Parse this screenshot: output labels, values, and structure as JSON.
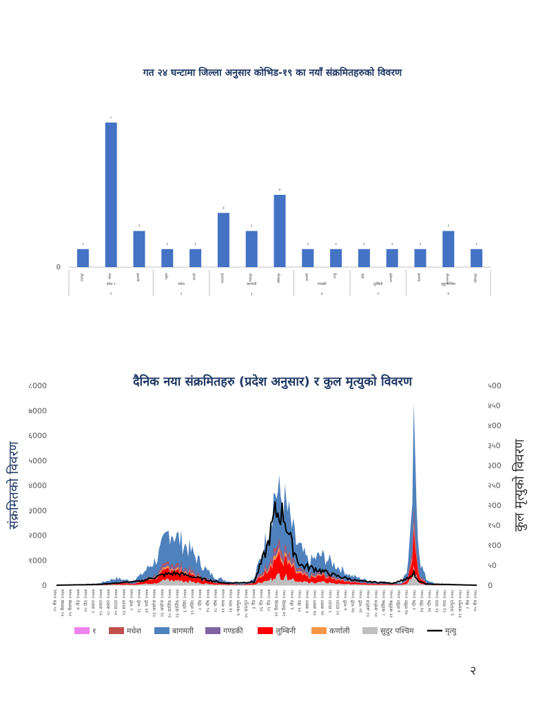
{
  "page": {
    "number": "२"
  },
  "chart_data": [
    {
      "type": "bar",
      "title": "गत २४ घन्टामा जिल्ला अनुसार कोभिड-१९ का नयाँ संक्रमितहरुको विवरण",
      "xlabel": "",
      "ylabel": "",
      "y_tick_labels": [
        "0"
      ],
      "categories": [
        "उदयपुर",
        "मोरङ",
        "सुनसरी",
        "धनुषा",
        "सप्तरी",
        "काठमाडौं",
        "भक्तपुर",
        "ललितपुर",
        "कास्की",
        "तनहुँ",
        "बाँके",
        "रुपन्देही",
        "कैलाली",
        "कञ्चनपुर",
        "डडेलधुरा"
      ],
      "values": [
        1,
        8,
        2,
        1,
        1,
        3,
        2,
        4,
        1,
        1,
        1,
        1,
        1,
        2,
        1
      ],
      "data_labels": [
        "१",
        "८",
        "२",
        "१",
        "१",
        "३",
        "२",
        "४",
        "१",
        "१",
        "१",
        "१",
        "१",
        "२",
        "१"
      ],
      "groups": [
        {
          "name": "प्रदेश १",
          "code": "१",
          "start": 0,
          "end": 2
        },
        {
          "name": "मधेश",
          "code": "२",
          "start": 3,
          "end": 4
        },
        {
          "name": "बागमती",
          "code": "३",
          "start": 5,
          "end": 7
        },
        {
          "name": "गण्डकी",
          "code": "४",
          "start": 8,
          "end": 9
        },
        {
          "name": "लुम्बिनी",
          "code": "५",
          "start": 10,
          "end": 11
        },
        {
          "name": "सुदूरपश्चिम",
          "code": "७",
          "start": 12,
          "end": 14
        }
      ],
      "colors": {
        "bar": "#4472c4"
      }
    },
    {
      "type": "area",
      "title": "दैनिक नया संक्रमितहरु (प्रदेश अनुसार) र कुल मृत्युको विवरण",
      "ylabel": "संक्रमितको विवरण",
      "y2label": "कुल मृत्युको विवरण",
      "ylim": [
        0,
        8000
      ],
      "y2lim": [
        0,
        500
      ],
      "y_tick_labels": [
        "0",
        "१000",
        "२000",
        "३000",
        "४000",
        "५000",
        "६000",
        "७000",
        "८000"
      ],
      "y2_tick_labels": [
        "0",
        "५0",
        "१00",
        "१५0",
        "२00",
        "२५0",
        "३00",
        "३५0",
        "४00",
        "४५0",
        "५00"
      ],
      "x_tick_labels": [
        "२५ चैत्र २०७६",
        "१२ वैशाख २०७७",
        "२५ वैशाख २०७७",
        "७ जेठ २०७७",
        "२० जेठ २०७७",
        "२ असार २०७७",
        "१५ असार २०७७",
        "२८ असार २०७७",
        "१० साउन २०७७",
        "२३ साउन २०७७",
        "५ भदौ २०७७",
        "१८ भदौ २०७७",
        "३१ भदौ २०७७",
        "१३ असोज २०७७",
        "२६ असोज २०७७",
        "१० कार्तिक २०७७",
        "२३ कार्तिक २०७७",
        "६ मंसिर २०७७",
        "१९ मंसिर २०७७",
        "२ पौष २०७७",
        "१५ पौष २०७७",
        "२८ पौष २०७७",
        "११ माघ २०७७",
        "२४ माघ २०७७",
        "७ फाल्गुन २०७७",
        "२० फाल्गुन २०७७",
        "३ चैत्र २०७७",
        "१६ चैत्र २०७७",
        "२९ चैत्र २०७७",
        "११ वैशाख २०७८",
        "२४ वैशाख २०७८",
        "६ जेठ २०७८",
        "१९ जेठ २०७८",
        "१ असार २०७८",
        "१४ असार २०७८",
        "२७ असार २०७८",
        "९ साउन २०७८",
        "२२ साउन २०७८",
        "४ भदौ २०७८",
        "१७ भदौ २०७८",
        "३० भदौ २०७८",
        "१२ असोज २०७८",
        "२५ असोज २०७८",
        "८ कार्तिक २०७८",
        "२१ कार्तिक २०७८",
        "४ मंसिर २०७८",
        "१७ मंसिर २०७८",
        "१ पौष २०७८",
        "१४ पौष २०७८",
        "२७ पौष २०७८",
        "१० माघ २०७८",
        "२३ माघ २०७८",
        "६ फाल्गुन २०७८",
        "१९ फाल्गुन २०७८",
        "२ चैत्र २०७८",
        "१५ चैत्र २०७८"
      ],
      "infection_curve_max": [
        [
          0,
          0
        ],
        [
          0.03,
          10
        ],
        [
          0.1,
          90
        ],
        [
          0.14,
          360
        ],
        [
          0.18,
          220
        ],
        [
          0.2,
          500
        ],
        [
          0.24,
          1400
        ],
        [
          0.27,
          2900
        ],
        [
          0.29,
          2400
        ],
        [
          0.31,
          2000
        ],
        [
          0.33,
          1500
        ],
        [
          0.36,
          700
        ],
        [
          0.38,
          400
        ],
        [
          0.41,
          200
        ],
        [
          0.44,
          80
        ],
        [
          0.47,
          300
        ],
        [
          0.5,
          2500
        ],
        [
          0.52,
          4900
        ],
        [
          0.545,
          4200
        ],
        [
          0.57,
          2200
        ],
        [
          0.6,
          1200
        ],
        [
          0.63,
          1550
        ],
        [
          0.66,
          1100
        ],
        [
          0.7,
          500
        ],
        [
          0.74,
          250
        ],
        [
          0.78,
          180
        ],
        [
          0.82,
          120
        ],
        [
          0.835,
          800
        ],
        [
          0.845,
          3000
        ],
        [
          0.85,
          7500
        ],
        [
          0.855,
          5000
        ],
        [
          0.865,
          1200
        ],
        [
          0.88,
          300
        ],
        [
          0.9,
          80
        ],
        [
          0.92,
          20
        ],
        [
          1.0,
          0
        ]
      ],
      "deaths_curve": [
        [
          0,
          0
        ],
        [
          0.1,
          2
        ],
        [
          0.2,
          10
        ],
        [
          0.25,
          25
        ],
        [
          0.28,
          30
        ],
        [
          0.31,
          25
        ],
        [
          0.35,
          15
        ],
        [
          0.4,
          5
        ],
        [
          0.47,
          8
        ],
        [
          0.5,
          90
        ],
        [
          0.52,
          180
        ],
        [
          0.54,
          180
        ],
        [
          0.56,
          100
        ],
        [
          0.58,
          50
        ],
        [
          0.62,
          40
        ],
        [
          0.66,
          25
        ],
        [
          0.72,
          10
        ],
        [
          0.8,
          5
        ],
        [
          0.845,
          20
        ],
        [
          0.85,
          30
        ],
        [
          0.86,
          10
        ],
        [
          0.88,
          3
        ],
        [
          1.0,
          0
        ]
      ],
      "legend_position": "bottom",
      "series": [
        {
          "name": "१",
          "color": "#ee82ee"
        },
        {
          "name": "मधेश",
          "color": "#c0504d"
        },
        {
          "name": "बागमती",
          "color": "#4f81bd"
        },
        {
          "name": "गण्डकी",
          "color": "#8064a2"
        },
        {
          "name": "लुम्बिनी",
          "color": "#ff0000"
        },
        {
          "name": "कर्णाली",
          "color": "#f79646"
        },
        {
          "name": "सुदुर पश्चिम",
          "color": "#bfbfbf"
        },
        {
          "name": "मृत्यु",
          "color": "#000000"
        }
      ]
    }
  ]
}
